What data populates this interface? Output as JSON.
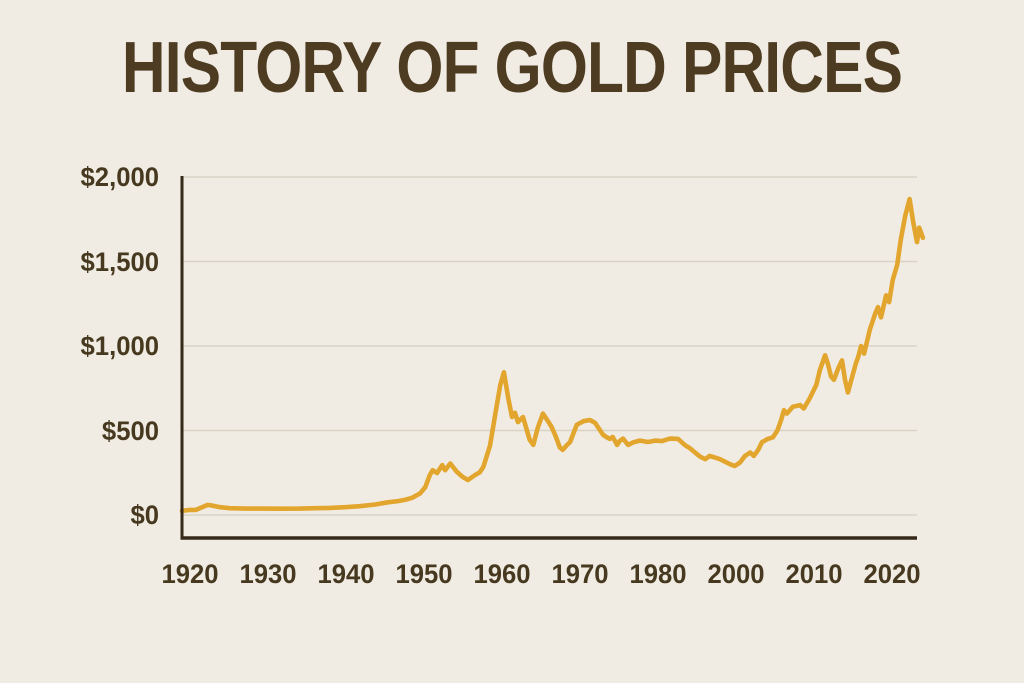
{
  "title": "HISTORY OF GOLD PRICES",
  "colors": {
    "background": "#F1ECE3",
    "title_text": "#4E3C22",
    "tick_text": "#46391F",
    "axis": "#35291A",
    "gridline": "#D9D3C7",
    "line": "#E2A62E"
  },
  "chart_data": {
    "type": "line",
    "title": "HISTORY OF GOLD PRICES",
    "xlabel": "",
    "ylabel": "",
    "grid": "horizontal",
    "legend": "none",
    "y_axis": {
      "min": 0,
      "max": 2000,
      "ticks": [
        {
          "label": "$0",
          "value": 0
        },
        {
          "label": "$500",
          "value": 500
        },
        {
          "label": "$1,000",
          "value": 1000
        },
        {
          "label": "$1,500",
          "value": 1500
        },
        {
          "label": "$2,000",
          "value": 2000
        }
      ]
    },
    "x_axis": {
      "tick_labels": [
        "1920",
        "1930",
        "1940",
        "1950",
        "1960",
        "1970",
        "1980",
        "2000",
        "2010",
        "2020"
      ],
      "tick_spacing": "even"
    },
    "series": [
      {
        "name": "gold-price-usd-per-ounce",
        "color": "#E2A62E",
        "x_units": "percent-of-plot-width",
        "points": [
          [
            0,
            25
          ],
          [
            1.1,
            30
          ],
          [
            1.9,
            30
          ],
          [
            2.7,
            45
          ],
          [
            3.5,
            60
          ],
          [
            4.2,
            55
          ],
          [
            5.2,
            46
          ],
          [
            6.5,
            40
          ],
          [
            8.6,
            38
          ],
          [
            10.6,
            38
          ],
          [
            13.3,
            37
          ],
          [
            16.1,
            38
          ],
          [
            18.1,
            40
          ],
          [
            20.1,
            42
          ],
          [
            22.2,
            46
          ],
          [
            24.2,
            52
          ],
          [
            26.3,
            62
          ],
          [
            28,
            75
          ],
          [
            29.4,
            82
          ],
          [
            30.5,
            92
          ],
          [
            31.3,
            102
          ],
          [
            32.4,
            128
          ],
          [
            33.1,
            165
          ],
          [
            33.7,
            235
          ],
          [
            34.1,
            265
          ],
          [
            34.7,
            248
          ],
          [
            35.4,
            295
          ],
          [
            35.8,
            265
          ],
          [
            36.5,
            305
          ],
          [
            37.4,
            255
          ],
          [
            38.2,
            225
          ],
          [
            38.9,
            207
          ],
          [
            39.9,
            237
          ],
          [
            40.5,
            252
          ],
          [
            41,
            285
          ],
          [
            41.9,
            410
          ],
          [
            42.6,
            590
          ],
          [
            43.3,
            770
          ],
          [
            43.8,
            845
          ],
          [
            44.4,
            690
          ],
          [
            44.9,
            580
          ],
          [
            45.3,
            605
          ],
          [
            45.7,
            550
          ],
          [
            46.4,
            580
          ],
          [
            46.9,
            505
          ],
          [
            47.3,
            445
          ],
          [
            47.8,
            415
          ],
          [
            48.4,
            515
          ],
          [
            49.1,
            600
          ],
          [
            49.8,
            555
          ],
          [
            50.3,
            520
          ],
          [
            50.9,
            460
          ],
          [
            51.4,
            400
          ],
          [
            51.8,
            385
          ],
          [
            52.4,
            415
          ],
          [
            52.8,
            432
          ],
          [
            53.7,
            533
          ],
          [
            54.6,
            555
          ],
          [
            55.5,
            562
          ],
          [
            56.2,
            545
          ],
          [
            56.9,
            500
          ],
          [
            57.3,
            474
          ],
          [
            57.8,
            460
          ],
          [
            58.2,
            450
          ],
          [
            58.6,
            462
          ],
          [
            59.2,
            415
          ],
          [
            59.6,
            440
          ],
          [
            60,
            452
          ],
          [
            60.7,
            415
          ],
          [
            61.4,
            430
          ],
          [
            62.3,
            440
          ],
          [
            63.4,
            432
          ],
          [
            64.4,
            440
          ],
          [
            65.3,
            437
          ],
          [
            66.4,
            452
          ],
          [
            67.5,
            450
          ],
          [
            68.4,
            415
          ],
          [
            69.1,
            395
          ],
          [
            69.8,
            370
          ],
          [
            70.5,
            345
          ],
          [
            71.2,
            330
          ],
          [
            71.8,
            350
          ],
          [
            72.5,
            340
          ],
          [
            73.2,
            330
          ],
          [
            73.9,
            315
          ],
          [
            74.6,
            300
          ],
          [
            75.2,
            290
          ],
          [
            75.9,
            310
          ],
          [
            76.6,
            350
          ],
          [
            77.3,
            370
          ],
          [
            77.8,
            350
          ],
          [
            78.4,
            385
          ],
          [
            78.9,
            430
          ],
          [
            79.7,
            450
          ],
          [
            80.4,
            460
          ],
          [
            81,
            500
          ],
          [
            81.5,
            560
          ],
          [
            81.9,
            620
          ],
          [
            82.3,
            600
          ],
          [
            83.1,
            640
          ],
          [
            84.1,
            650
          ],
          [
            84.6,
            630
          ],
          [
            85.4,
            690
          ],
          [
            86.3,
            770
          ],
          [
            86.8,
            860
          ],
          [
            87.5,
            945
          ],
          [
            87.9,
            890
          ],
          [
            88.3,
            820
          ],
          [
            88.7,
            800
          ],
          [
            89.3,
            870
          ],
          [
            89.8,
            915
          ],
          [
            90.2,
            800
          ],
          [
            90.6,
            725
          ],
          [
            91.2,
            820
          ],
          [
            91.7,
            900
          ],
          [
            92,
            935
          ],
          [
            92.4,
            1000
          ],
          [
            92.8,
            955
          ],
          [
            93.6,
            1100
          ],
          [
            94.3,
            1190
          ],
          [
            94.7,
            1230
          ],
          [
            95.1,
            1170
          ],
          [
            95.8,
            1300
          ],
          [
            96.2,
            1260
          ],
          [
            96.7,
            1390
          ],
          [
            97.3,
            1480
          ],
          [
            97.8,
            1630
          ],
          [
            98.4,
            1770
          ],
          [
            99,
            1870
          ],
          [
            99.5,
            1730
          ],
          [
            100,
            1615
          ],
          [
            100.3,
            1700
          ],
          [
            100.8,
            1640
          ]
        ]
      }
    ]
  }
}
